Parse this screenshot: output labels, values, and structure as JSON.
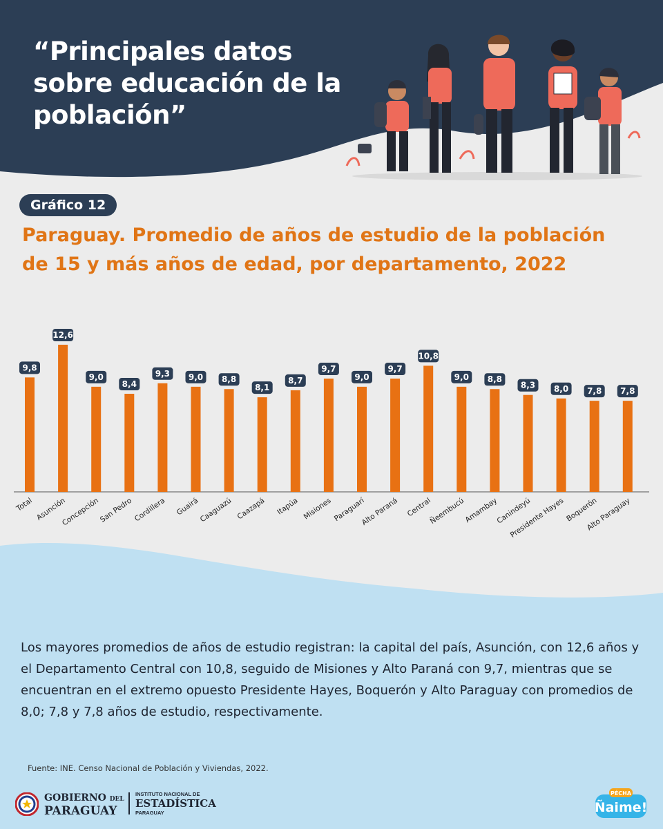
{
  "header": {
    "title_lines": [
      "“Principales datos",
      "sobre educación de la",
      "población”"
    ]
  },
  "badge": {
    "label": "Gráfico 12"
  },
  "chart_data": {
    "type": "bar",
    "title": "Paraguay. Promedio de años de estudio de la población de 15 y más años de edad, por departamento, 2022",
    "title_lines": [
      "Paraguay. Promedio de años de estudio de la población",
      "de 15 y más años de edad, por departamento, 2022"
    ],
    "categories": [
      "Total",
      "Asunción",
      "Concepción",
      "San Pedro",
      "Cordillera",
      "Guairá",
      "Caaguazú",
      "Caazapá",
      "Itapúa",
      "Misiones",
      "Paraguarí",
      "Alto Paraná",
      "Central",
      "Ñeembucú",
      "Amambay",
      "Canindeyú",
      "Presidente Hayes",
      "Boquerón",
      "Alto Paraguay"
    ],
    "values": [
      9.8,
      12.6,
      9.0,
      8.4,
      9.3,
      9.0,
      8.8,
      8.1,
      8.7,
      9.7,
      9.0,
      9.7,
      10.8,
      9.0,
      8.8,
      8.3,
      8.0,
      7.8,
      7.8
    ],
    "value_labels": [
      "9,8",
      "12,6",
      "9,0",
      "8,4",
      "9,3",
      "9,0",
      "8,8",
      "8,1",
      "8,7",
      "9,7",
      "9,0",
      "9,7",
      "10,8",
      "9,0",
      "8,8",
      "8,3",
      "8,0",
      "7,8",
      "7,8"
    ],
    "xlabel": "",
    "ylabel": "",
    "ylim": [
      0,
      12.6
    ],
    "grid": false,
    "legend": "none",
    "bar_color": "#e87113",
    "label_box_color": "#2c3e55"
  },
  "description": "Los mayores promedios de años de estudio registran: la capital del país, Asunción, con 12,6 años y el Departamento Central con 10,8, seguido de Misiones y Alto Paraná con 9,7, mientras que se encuentran en el extremo opuesto Presidente Hayes, Boquerón y Alto Paraguay con promedios de 8,0; 7,8 y 7,8 años de estudio, respectivamente.",
  "source": "Fuente: INE. Censo Nacional de Población y Viviendas, 2022.",
  "footer": {
    "gov_line1": "GOBIERNO",
    "gov_line1_small": "DEL",
    "gov_line2": "PARAGUAY",
    "ine_line1": "INSTITUTO NACIONAL DE",
    "ine_line2": "ESTADÍSTICA",
    "ine_line3": "PARAGUAY",
    "naime_top": "PÉCHA",
    "naime_main": "Ñaime!"
  },
  "colors": {
    "navy": "#2c3e55",
    "orange": "#e07516",
    "light_blue": "#bfe0f2",
    "light_gray": "#ececec"
  }
}
